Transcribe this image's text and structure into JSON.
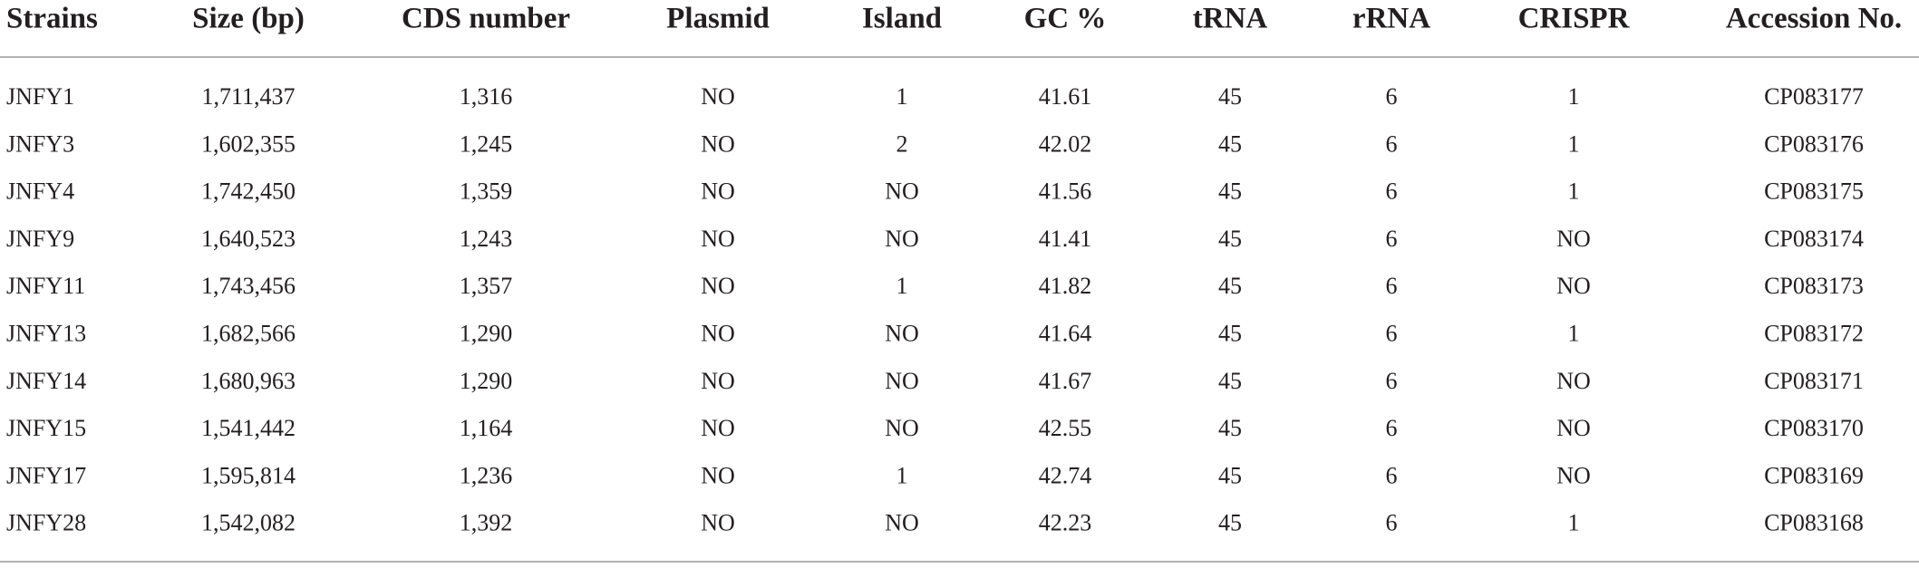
{
  "table": {
    "header": [
      "Strains",
      "Size (bp)",
      "CDS number",
      "Plasmid",
      "Island",
      "GC %",
      "tRNA",
      "rRNA",
      "CRISPR",
      "Accession No."
    ],
    "rows": [
      [
        "JNFY1",
        "1,711,437",
        "1,316",
        "NO",
        "1",
        "41.61",
        "45",
        "6",
        "1",
        "CP083177"
      ],
      [
        "JNFY3",
        "1,602,355",
        "1,245",
        "NO",
        "2",
        "42.02",
        "45",
        "6",
        "1",
        "CP083176"
      ],
      [
        "JNFY4",
        "1,742,450",
        "1,359",
        "NO",
        "NO",
        "41.56",
        "45",
        "6",
        "1",
        "CP083175"
      ],
      [
        "JNFY9",
        "1,640,523",
        "1,243",
        "NO",
        "NO",
        "41.41",
        "45",
        "6",
        "NO",
        "CP083174"
      ],
      [
        "JNFY11",
        "1,743,456",
        "1,357",
        "NO",
        "1",
        "41.82",
        "45",
        "6",
        "NO",
        "CP083173"
      ],
      [
        "JNFY13",
        "1,682,566",
        "1,290",
        "NO",
        "NO",
        "41.64",
        "45",
        "6",
        "1",
        "CP083172"
      ],
      [
        "JNFY14",
        "1,680,963",
        "1,290",
        "NO",
        "NO",
        "41.67",
        "45",
        "6",
        "NO",
        "CP083171"
      ],
      [
        "JNFY15",
        "1,541,442",
        "1,164",
        "NO",
        "NO",
        "42.55",
        "45",
        "6",
        "NO",
        "CP083170"
      ],
      [
        "JNFY17",
        "1,595,814",
        "1,236",
        "NO",
        "1",
        "42.74",
        "45",
        "6",
        "NO",
        "CP083169"
      ],
      [
        "JNFY28",
        "1,542,082",
        "1,392",
        "NO",
        "NO",
        "42.23",
        "45",
        "6",
        "1",
        "CP083168"
      ]
    ]
  }
}
